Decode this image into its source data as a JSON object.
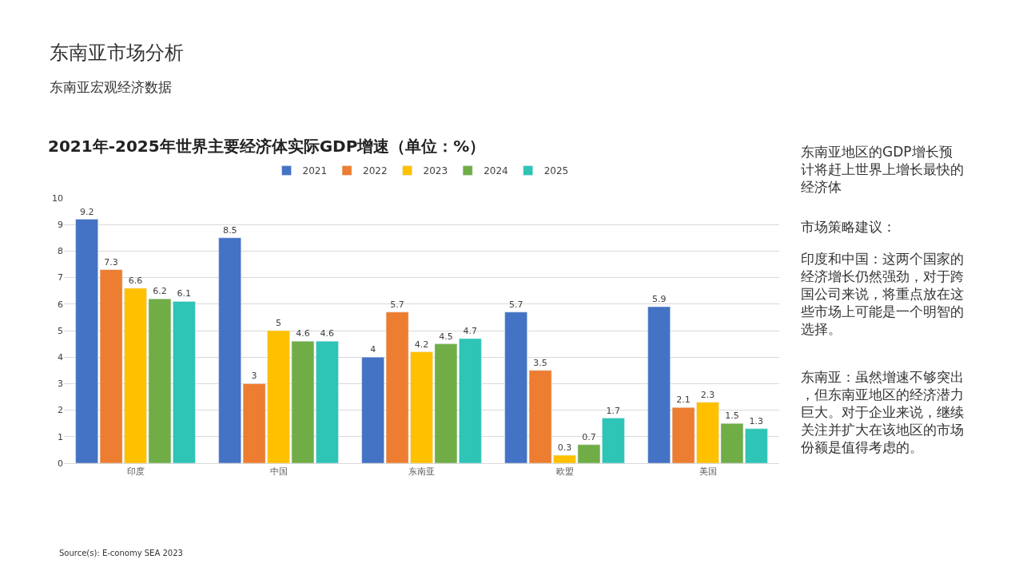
{
  "chart_data": {
    "type": "bar",
    "title": "2021年-2025年世界主要经济体实际GDP增速（单位：%）",
    "categories": [
      "印度",
      "中国",
      "东南亚",
      "欧盟",
      "美国"
    ],
    "series": [
      {
        "name": "2021",
        "color": "#4472c4",
        "values": [
          9.2,
          8.5,
          4,
          5.7,
          5.9
        ]
      },
      {
        "name": "2022",
        "color": "#ed7d31",
        "values": [
          7.3,
          3,
          5.7,
          3.5,
          2.1
        ]
      },
      {
        "name": "2023",
        "color": "#ffc000",
        "values": [
          6.6,
          5,
          4.2,
          0.3,
          2.3
        ]
      },
      {
        "name": "2024",
        "color": "#70ad47",
        "values": [
          6.2,
          4.6,
          4.5,
          0.7,
          1.5
        ]
      },
      {
        "name": "2025",
        "color": "#2ec4b6",
        "values": [
          6.1,
          4.6,
          4.7,
          1.7,
          1.3
        ]
      }
    ],
    "ylim": [
      0,
      10
    ],
    "yticks": [
      0,
      1,
      2,
      3,
      4,
      5,
      6,
      7,
      8,
      9,
      10
    ],
    "grid": "y",
    "legend": "top",
    "data_labels": true,
    "annotations": [
      "东南亚市场分析",
      "东南亚宏观经济数据",
      "东南亚地区的GDP增长预计将赶上世界上增长最快的经济体",
      "市场策略建议：",
      "印度和中国：这两个国家的经济增长仍然强劲，对于跨国公司来说，将重点放在这些市场上可能是一个明智的选择。",
      "东南亚：虽然增速不够突出，但东南亚地区的经济潜力巨大。对于企业来说，继续关注并扩大在该地区的市场份额是值得考虑的。",
      "Source(s): E-conomy SEA 2023"
    ]
  }
}
